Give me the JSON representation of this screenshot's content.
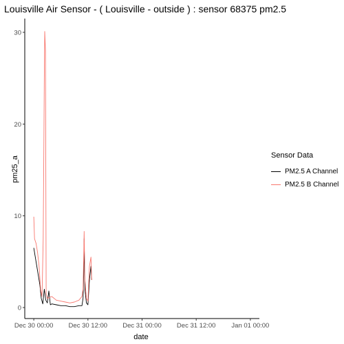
{
  "chart_data": {
    "type": "line",
    "title": "Louisville Air Sensor - ( Louisville - outside ) : sensor 68375 pm2.5",
    "xlabel": "date",
    "ylabel": "pm25_a",
    "x_ticks": [
      "Dec 30 00:00",
      "Dec 30 12:00",
      "Dec 31 00:00",
      "Dec 31 12:00",
      "Jan 01 00:00"
    ],
    "y_ticks": [
      "0",
      "10",
      "20",
      "30"
    ],
    "xlim": [
      "Dec 29 22:00",
      "Jan 01 02:00"
    ],
    "ylim": [
      -1.2,
      31.5
    ],
    "grid": false,
    "legend": {
      "title": "Sensor Data",
      "position": "right"
    },
    "series": [
      {
        "name": "PM2.5 A Channel",
        "color": "#000000",
        "points": [
          [
            "Dec 30 00:00",
            6.5
          ],
          [
            "Dec 30 00:20",
            5.5
          ],
          [
            "Dec 30 00:40",
            4.5
          ],
          [
            "Dec 30 01:00",
            3.5
          ],
          [
            "Dec 30 01:20",
            2.5
          ],
          [
            "Dec 30 01:40",
            1.0
          ],
          [
            "Dec 30 02:00",
            0.4
          ],
          [
            "Dec 30 02:20",
            2.0
          ],
          [
            "Dec 30 02:40",
            0.8
          ],
          [
            "Dec 30 03:00",
            0.5
          ],
          [
            "Dec 30 03:20",
            1.8
          ],
          [
            "Dec 30 03:40",
            0.3
          ],
          [
            "Dec 30 04:00",
            0.4
          ],
          [
            "Dec 30 05:00",
            0.3
          ],
          [
            "Dec 30 06:00",
            0.2
          ],
          [
            "Dec 30 07:00",
            0.2
          ],
          [
            "Dec 30 08:00",
            0.1
          ],
          [
            "Dec 30 09:00",
            0.1
          ],
          [
            "Dec 30 10:00",
            0.2
          ],
          [
            "Dec 30 10:40",
            0.2
          ],
          [
            "Dec 30 10:55",
            1.0
          ],
          [
            "Dec 30 11:05",
            4.0
          ],
          [
            "Dec 30 11:10",
            7.5
          ],
          [
            "Dec 30 11:20",
            2.0
          ],
          [
            "Dec 30 11:40",
            0.5
          ],
          [
            "Dec 30 12:00",
            0.3
          ],
          [
            "Dec 30 12:20",
            3.0
          ],
          [
            "Dec 30 12:40",
            4.5
          ],
          [
            "Dec 30 12:50",
            3.0
          ]
        ]
      },
      {
        "name": "PM2.5 B Channel",
        "color": "#F8766D",
        "points": [
          [
            "Dec 30 00:00",
            9.9
          ],
          [
            "Dec 30 00:10",
            7.5
          ],
          [
            "Dec 30 00:30",
            7.0
          ],
          [
            "Dec 30 00:50",
            6.0
          ],
          [
            "Dec 30 01:10",
            4.5
          ],
          [
            "Dec 30 01:30",
            2.0
          ],
          [
            "Dec 30 01:50",
            1.2
          ],
          [
            "Dec 30 02:05",
            7.5
          ],
          [
            "Dec 30 02:15",
            19.0
          ],
          [
            "Dec 30 02:20",
            25.0
          ],
          [
            "Dec 30 02:25",
            30.1
          ],
          [
            "Dec 30 02:35",
            28.0
          ],
          [
            "Dec 30 02:45",
            1.5
          ],
          [
            "Dec 30 03:00",
            1.0
          ],
          [
            "Dec 30 04:00",
            1.2
          ],
          [
            "Dec 30 05:00",
            0.8
          ],
          [
            "Dec 30 06:00",
            0.7
          ],
          [
            "Dec 30 07:00",
            0.6
          ],
          [
            "Dec 30 08:00",
            0.5
          ],
          [
            "Dec 30 09:00",
            0.6
          ],
          [
            "Dec 30 10:00",
            0.8
          ],
          [
            "Dec 30 10:40",
            1.2
          ],
          [
            "Dec 30 10:55",
            2.0
          ],
          [
            "Dec 30 11:05",
            6.0
          ],
          [
            "Dec 30 11:10",
            8.3
          ],
          [
            "Dec 30 11:20",
            3.0
          ],
          [
            "Dec 30 11:40",
            1.0
          ],
          [
            "Dec 30 12:00",
            0.7
          ],
          [
            "Dec 30 12:20",
            4.5
          ],
          [
            "Dec 30 12:40",
            5.5
          ],
          [
            "Dec 30 12:50",
            3.0
          ]
        ]
      }
    ]
  }
}
